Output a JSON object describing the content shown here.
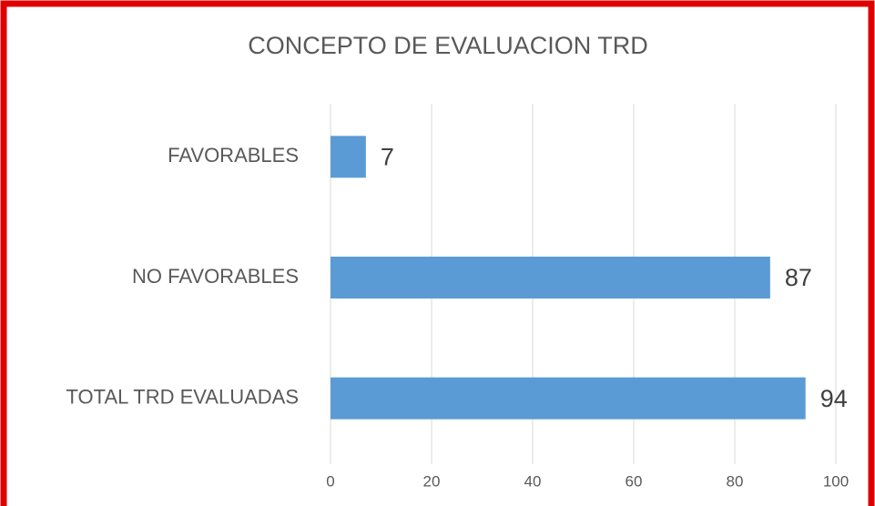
{
  "chart_data": {
    "type": "bar",
    "orientation": "horizontal",
    "title": "CONCEPTO DE EVALUACION TRD",
    "categories": [
      "FAVORABLES",
      "NO FAVORABLES",
      "TOTAL TRD EVALUADAS"
    ],
    "values": [
      7,
      87,
      94
    ],
    "color": "#5b9bd5",
    "xlim": [
      0,
      100
    ],
    "xticks": [
      0,
      20,
      40,
      60,
      80,
      100
    ],
    "grid": true
  }
}
